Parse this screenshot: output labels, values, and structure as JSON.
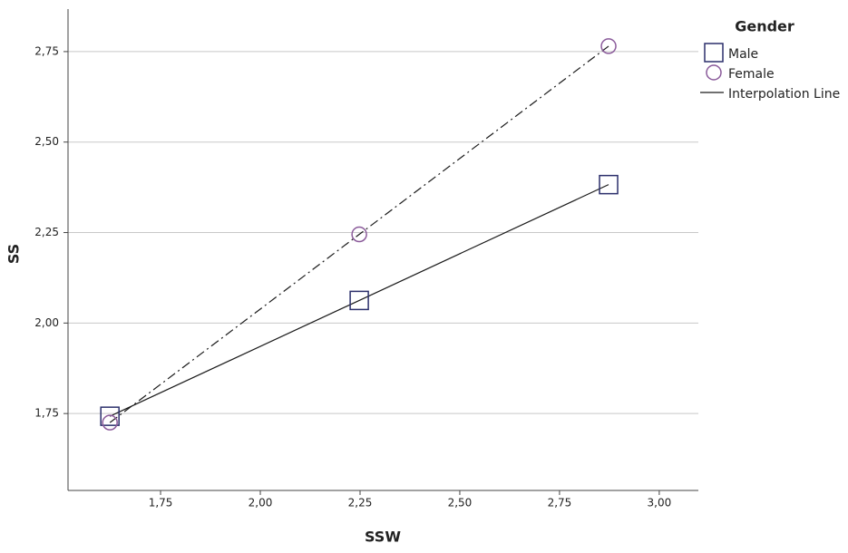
{
  "chart_data": {
    "type": "scatter",
    "x_label": "SSW",
    "y_label": "SS",
    "xlim": [
      1.518,
      3.098
    ],
    "ylim": [
      1.5375,
      2.8675
    ],
    "xticks": [
      {
        "value": 1.75,
        "label": "1,75"
      },
      {
        "value": 2.0,
        "label": "2,00"
      },
      {
        "value": 2.25,
        "label": "2,25"
      },
      {
        "value": 2.5,
        "label": "2,50"
      },
      {
        "value": 2.75,
        "label": "2,75"
      },
      {
        "value": 3.0,
        "label": "3,00"
      }
    ],
    "yticks": [
      {
        "value": 1.75,
        "label": "1,75"
      },
      {
        "value": 2.0,
        "label": "2,00"
      },
      {
        "value": 2.25,
        "label": "2,25"
      },
      {
        "value": 2.5,
        "label": "2,50"
      },
      {
        "value": 2.75,
        "label": "2,75"
      }
    ],
    "grid": true,
    "legend": {
      "title": "Gender",
      "line_label": "Interpolation Line",
      "position": "right"
    },
    "line_color": "#1a1a1a",
    "series": [
      {
        "name": "Male",
        "color": "#2b2f6b",
        "marker": "square",
        "dash": "solid",
        "x": [
          1.623,
          2.248,
          2.873
        ],
        "values": [
          1.7425,
          2.0625,
          2.3825
        ]
      },
      {
        "name": "Female",
        "color": "#8a5a9a",
        "marker": "circle",
        "dash": "dashdot",
        "x": [
          1.623,
          2.248,
          2.873
        ],
        "values": [
          1.725,
          2.245,
          2.765
        ]
      }
    ]
  }
}
